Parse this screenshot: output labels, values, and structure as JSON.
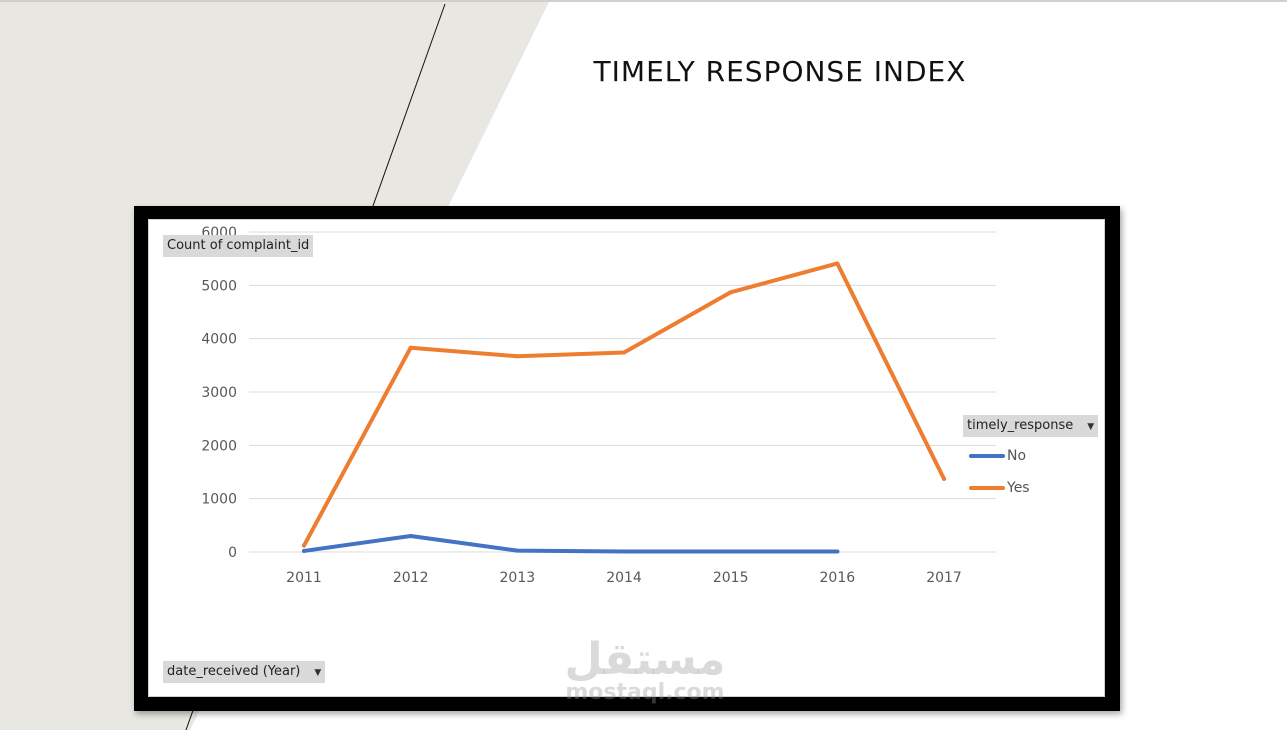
{
  "slide": {
    "title": "TIMELY RESPONSE INDEX",
    "background_shape_color": "#e9e7e1"
  },
  "pivot": {
    "value_field": "Count of complaint_id",
    "axis_field": "date_received (Year)",
    "legend_field": "timely_response",
    "dropdown_icon": "chevron-down-icon"
  },
  "watermark": {
    "arabic": "مستقل",
    "latin": "mostaql.com"
  },
  "chart_data": {
    "type": "line",
    "categories": [
      "2011",
      "2012",
      "2013",
      "2014",
      "2015",
      "2016",
      "2017"
    ],
    "ylim": [
      0,
      6000
    ],
    "yticks": [
      "0",
      "1000",
      "2000",
      "3000",
      "4000",
      "5000",
      "6000"
    ],
    "grid": true,
    "legend_position": "right",
    "series": [
      {
        "name": "No",
        "color": "#4472c4",
        "values": [
          20,
          300,
          25,
          10,
          10,
          10,
          null
        ]
      },
      {
        "name": "Yes",
        "color": "#ed7d31",
        "values": [
          120,
          3830,
          3670,
          3740,
          4870,
          5410,
          1370
        ]
      }
    ]
  }
}
